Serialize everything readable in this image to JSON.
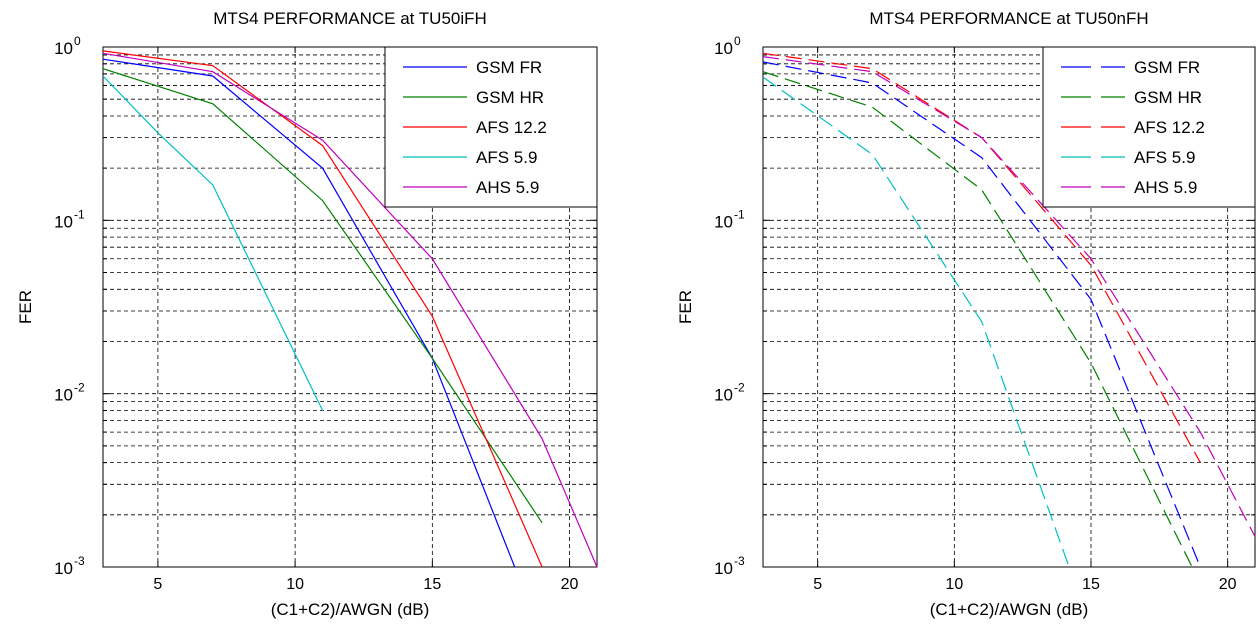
{
  "chart_data": [
    {
      "type": "line",
      "title": "MTS4 PERFORMANCE at TU50iFH",
      "xlabel": "(C1+C2)/AWGN (dB)",
      "ylabel": "FER",
      "xlim": [
        3,
        21
      ],
      "ylim": [
        0.001,
        1
      ],
      "yscale": "log",
      "grid": true,
      "legend": "top-right",
      "xticks": [
        5,
        10,
        15,
        20
      ],
      "yticks": [
        {
          "base": "10",
          "exp": "0"
        },
        {
          "base": "10",
          "exp": "-1"
        },
        {
          "base": "10",
          "exp": "-2"
        },
        {
          "base": "10",
          "exp": "-3"
        }
      ],
      "series": [
        {
          "name": "GSM FR",
          "color": "#0000ff",
          "dashed": false,
          "x": [
            3,
            7,
            11,
            15,
            18
          ],
          "y": [
            0.85,
            0.68,
            0.2,
            0.016,
            0.001
          ]
        },
        {
          "name": "GSM HR",
          "color": "#008000",
          "dashed": false,
          "x": [
            3,
            7,
            11,
            15,
            19
          ],
          "y": [
            0.75,
            0.47,
            0.13,
            0.016,
            0.0018
          ]
        },
        {
          "name": "AFS 12.2",
          "color": "#ff0000",
          "dashed": false,
          "x": [
            3,
            7,
            11,
            15,
            19
          ],
          "y": [
            0.95,
            0.78,
            0.27,
            0.028,
            0.001
          ]
        },
        {
          "name": "AFS 5.9",
          "color": "#00c0c0",
          "dashed": false,
          "x": [
            3,
            5,
            7,
            11
          ],
          "y": [
            0.68,
            0.32,
            0.16,
            0.008
          ]
        },
        {
          "name": "AHS 5.9",
          "color": "#c000c0",
          "dashed": false,
          "x": [
            3,
            7,
            11,
            15,
            19,
            21
          ],
          "y": [
            0.92,
            0.72,
            0.29,
            0.06,
            0.0055,
            0.001
          ]
        }
      ]
    },
    {
      "type": "line",
      "title": "MTS4 PERFORMANCE at TU50nFH",
      "xlabel": "(C1+C2)/AWGN (dB)",
      "ylabel": "FER",
      "xlim": [
        3,
        21
      ],
      "ylim": [
        0.001,
        1
      ],
      "yscale": "log",
      "grid": true,
      "legend": "top-right",
      "xticks": [
        5,
        10,
        15,
        20
      ],
      "yticks": [
        {
          "base": "10",
          "exp": "0"
        },
        {
          "base": "10",
          "exp": "-1"
        },
        {
          "base": "10",
          "exp": "-2"
        },
        {
          "base": "10",
          "exp": "-3"
        }
      ],
      "series": [
        {
          "name": "GSM FR",
          "color": "#0000ff",
          "dashed": true,
          "x": [
            3,
            7,
            11,
            15,
            19
          ],
          "y": [
            0.82,
            0.62,
            0.23,
            0.035,
            0.001
          ]
        },
        {
          "name": "GSM HR",
          "color": "#008000",
          "dashed": true,
          "x": [
            3,
            7,
            11,
            15,
            18.7
          ],
          "y": [
            0.72,
            0.45,
            0.15,
            0.015,
            0.001
          ]
        },
        {
          "name": "AFS 12.2",
          "color": "#ff0000",
          "dashed": true,
          "x": [
            3,
            7,
            11,
            15,
            19
          ],
          "y": [
            0.92,
            0.75,
            0.3,
            0.055,
            0.004
          ]
        },
        {
          "name": "AFS 5.9",
          "color": "#00c0c0",
          "dashed": true,
          "x": [
            3,
            7,
            11,
            14.2
          ],
          "y": [
            0.67,
            0.24,
            0.026,
            0.001
          ]
        },
        {
          "name": "AHS 5.9",
          "color": "#c000c0",
          "dashed": true,
          "x": [
            3,
            7,
            11,
            15,
            19,
            21
          ],
          "y": [
            0.88,
            0.72,
            0.3,
            0.06,
            0.006,
            0.0015
          ]
        }
      ]
    }
  ]
}
